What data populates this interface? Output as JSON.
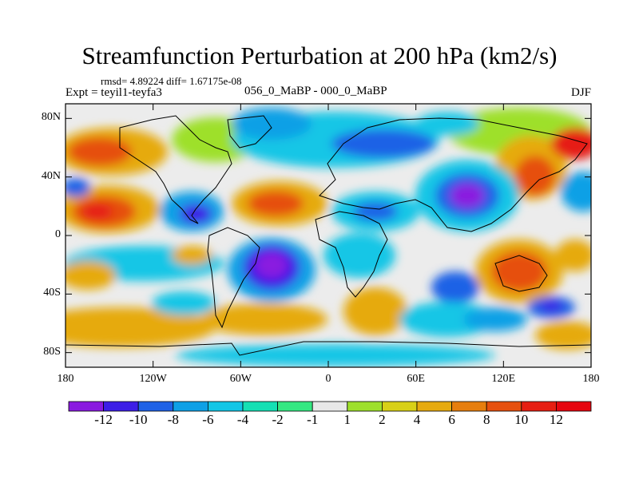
{
  "title": "Streamfunction Perturbation at 200 hPa (km2/s)",
  "stats": "rmsd= 4.89224 diff= 1.67175e-08",
  "experiment": "Expt = teyil1-teyfa3",
  "comparison": "056_0_MaBP - 000_0_MaBP",
  "season": "DJF",
  "lat_labels": [
    "80N",
    "40N",
    "0",
    "40S",
    "80S"
  ],
  "lon_labels": [
    "180",
    "120W",
    "60W",
    "0",
    "60E",
    "120E",
    "180"
  ],
  "colorbar": {
    "labels": [
      "-12",
      "-10",
      "-8",
      "-6",
      "-4",
      "-2",
      "-1",
      "1",
      "2",
      "4",
      "6",
      "8",
      "10",
      "12"
    ],
    "colors": [
      "#8a1ae0",
      "#3c1ee6",
      "#1f62e6",
      "#0ea0e6",
      "#12c6e6",
      "#15e0b4",
      "#35e882",
      "#e8e8e8",
      "#9ee02c",
      "#d8d018",
      "#e6aa10",
      "#e67e0e",
      "#e6500e",
      "#e61e12",
      "#e6050f"
    ]
  },
  "field": {
    "background": "#ececec",
    "features": [
      {
        "name": "north-pacific-high",
        "color": "#e6500e"
      },
      {
        "name": "south-america-low",
        "color": "#8a1ae0"
      },
      {
        "name": "asia-low",
        "color": "#8a1ae0"
      },
      {
        "name": "tropical-pacific-high",
        "color": "#e61e12"
      },
      {
        "name": "africa-high",
        "color": "#e6500e"
      },
      {
        "name": "indian-ocean-high",
        "color": "#e6500e"
      },
      {
        "name": "arctic-low",
        "color": "#1f62e6"
      }
    ]
  },
  "chart_data": {
    "type": "heatmap",
    "title": "Streamfunction Perturbation at 200 hPa (km2/s)",
    "x_range": [
      -180,
      180
    ],
    "y_range": [
      -90,
      90
    ],
    "levels": [
      -12,
      -10,
      -8,
      -6,
      -4,
      -2,
      -1,
      1,
      2,
      4,
      6,
      8,
      10,
      12
    ],
    "xticks": [
      "180",
      "120W",
      "60W",
      "0",
      "60E",
      "120E",
      "180"
    ],
    "yticks": [
      "80N",
      "40N",
      "0",
      "40S",
      "80S"
    ]
  }
}
